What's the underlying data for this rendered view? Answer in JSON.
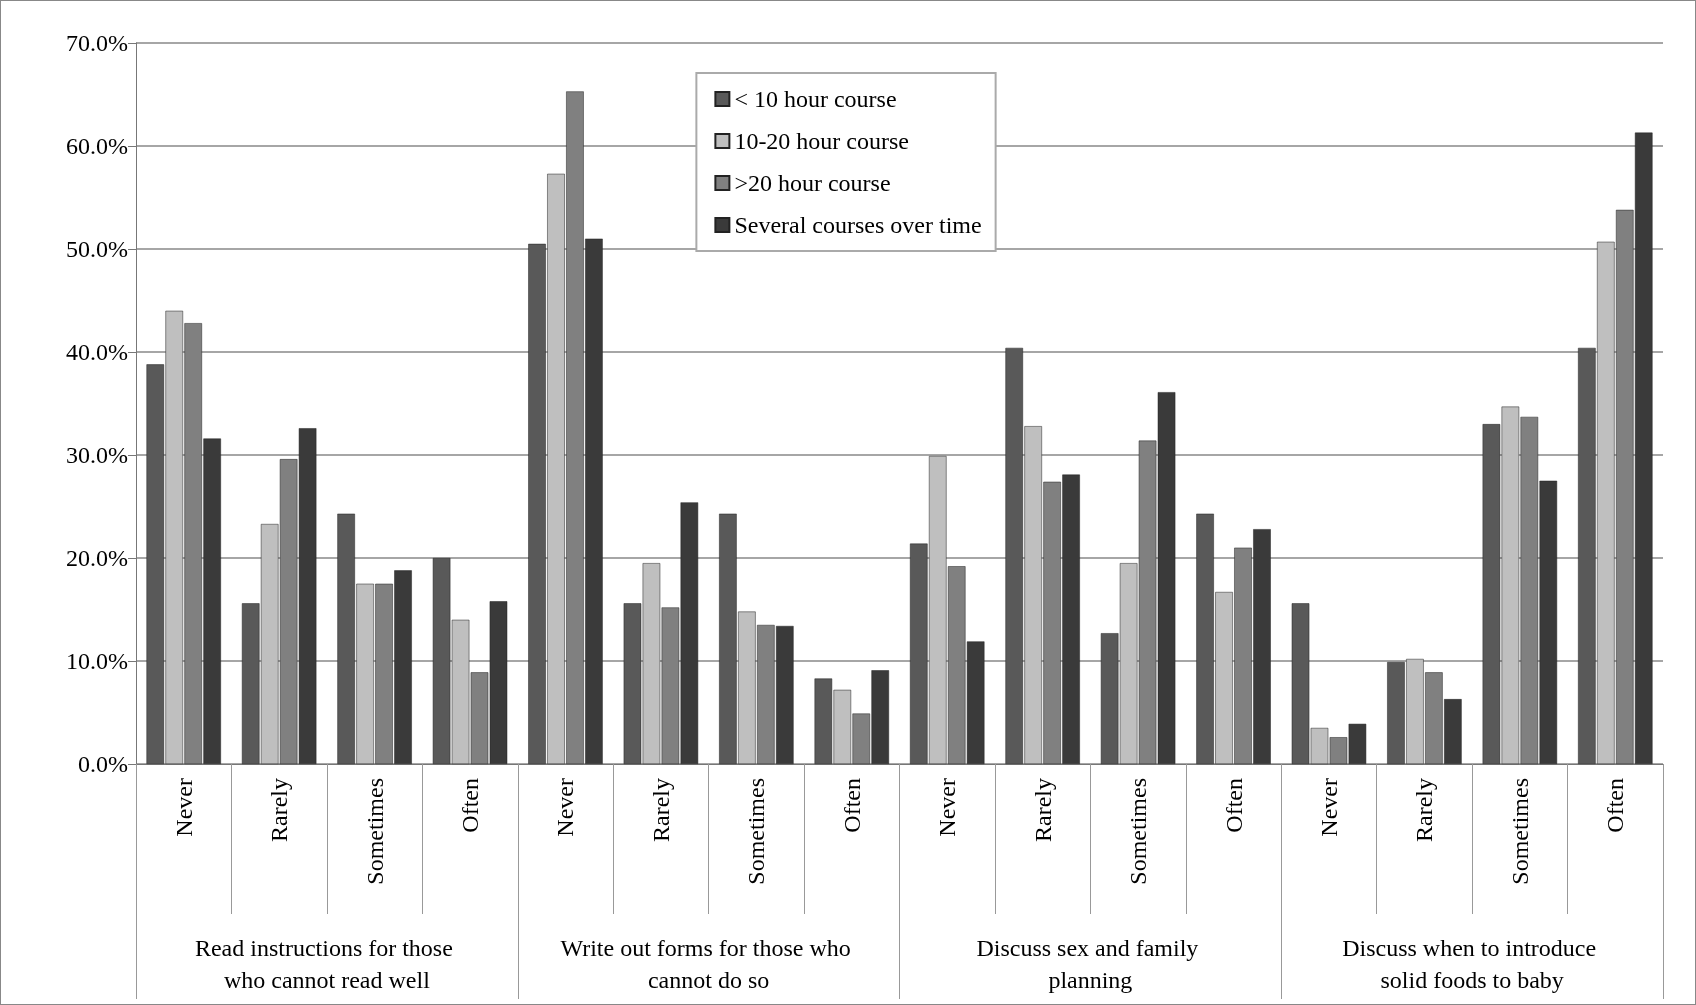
{
  "chart_data": {
    "type": "bar",
    "categories": [
      "Never",
      "Rarely",
      "Sometimes",
      "Often",
      "Never",
      "Rarely",
      "Sometimes",
      "Often",
      "Never",
      "Rarely",
      "Sometimes",
      "Often",
      "Never",
      "Rarely",
      "Sometimes",
      "Often"
    ],
    "annotations": [
      "Read instructions for those who cannot read well",
      "Write out forms for those who cannot do so",
      "Discuss sex and family planning",
      "Discuss when to introduce solid foods to baby"
    ],
    "series": [
      {
        "name": "< 10 hour course",
        "color": "#595959",
        "values": [
          38.8,
          15.6,
          24.3,
          20,
          50.5,
          15.6,
          24.3,
          8.3,
          21.4,
          40.4,
          12.7,
          24.3,
          15.6,
          9.9,
          33,
          40.4
        ]
      },
      {
        "name": "10-20 hour course",
        "color": "#bfbfbf",
        "values": [
          44,
          23.3,
          17.5,
          14,
          57.3,
          19.5,
          14.8,
          7.2,
          29.9,
          32.8,
          19.5,
          16.7,
          3.5,
          10.2,
          34.7,
          50.7
        ]
      },
      {
        "name": ">20 hour course",
        "color": "#808080",
        "values": [
          42.8,
          29.6,
          17.5,
          8.9,
          65.3,
          15.2,
          13.5,
          4.9,
          19.2,
          27.4,
          31.4,
          21,
          2.6,
          8.9,
          33.7,
          53.8
        ]
      },
      {
        "name": "Several courses over time",
        "color": "#3a3a3a",
        "values": [
          31.6,
          32.6,
          18.8,
          15.8,
          51,
          25.4,
          13.4,
          9.1,
          11.9,
          28.1,
          36.1,
          22.8,
          3.9,
          6.3,
          27.5,
          61.3
        ]
      }
    ],
    "ylim": [
      0,
      70
    ],
    "yticks": [
      {
        "value": 0,
        "label": "0.0%"
      },
      {
        "value": 10,
        "label": "10.0%"
      },
      {
        "value": 20,
        "label": "20.0%"
      },
      {
        "value": 30,
        "label": "30.0%"
      },
      {
        "value": 40,
        "label": "40.0%"
      },
      {
        "value": 50,
        "label": "50.0%"
      },
      {
        "value": 60,
        "label": "60.0%"
      },
      {
        "value": 70,
        "label": "70.0%"
      }
    ],
    "grid": "y",
    "legend": "top"
  }
}
